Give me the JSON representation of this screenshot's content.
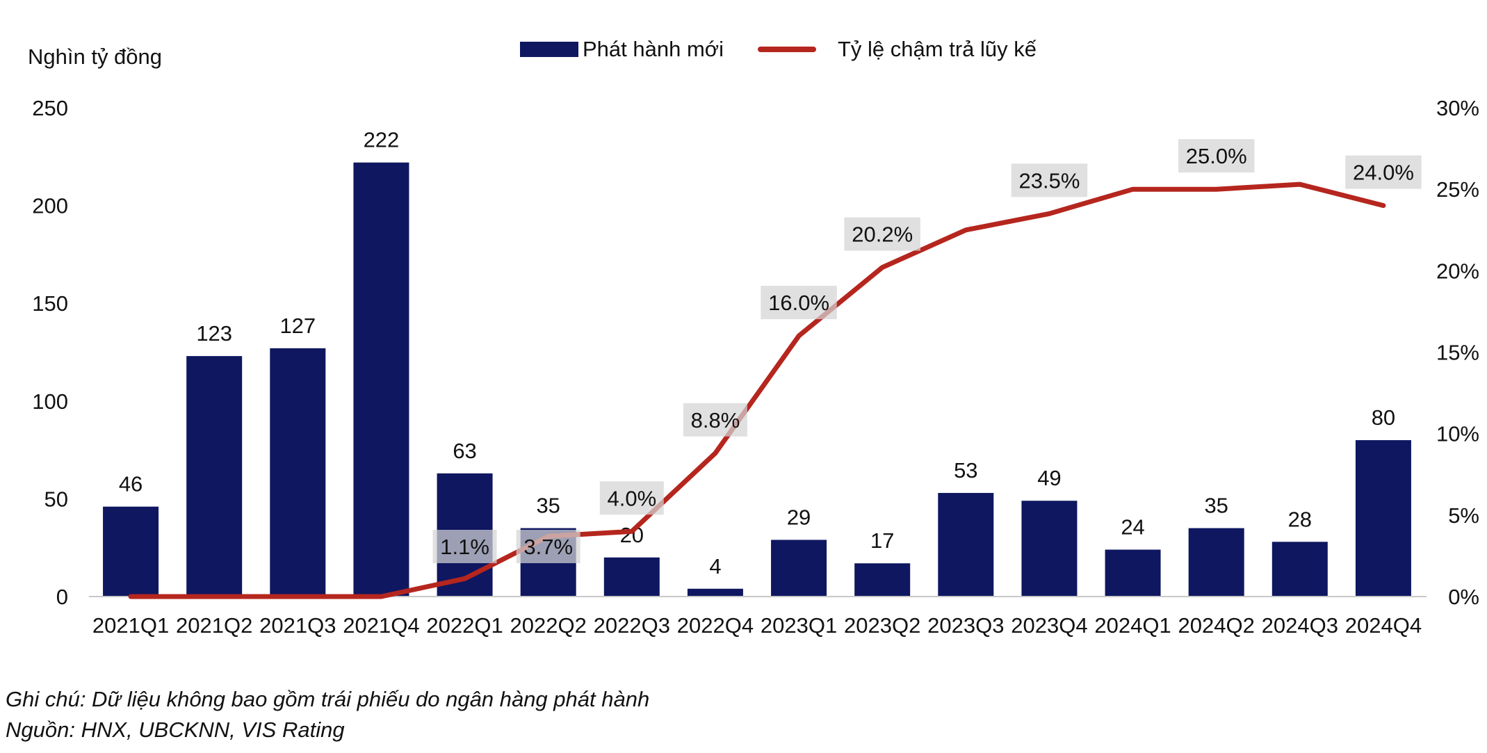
{
  "chart_data": {
    "type": "bar",
    "categories": [
      "2021Q1",
      "2021Q2",
      "2021Q3",
      "2021Q4",
      "2022Q1",
      "2022Q2",
      "2022Q3",
      "2022Q4",
      "2023Q1",
      "2023Q2",
      "2023Q3",
      "2023Q4",
      "2024Q1",
      "2024Q2",
      "2024Q3",
      "2024Q4"
    ],
    "ylabel": "Nghìn tỷ đồng",
    "ylim": [
      0,
      250
    ],
    "y_ticks": [
      "0",
      "50",
      "100",
      "150",
      "200",
      "250"
    ],
    "y2lim": [
      0,
      30
    ],
    "y2_ticks": [
      "0%",
      "5%",
      "10%",
      "15%",
      "20%",
      "25%",
      "30%"
    ],
    "legend_placement": "top-center",
    "grid": false,
    "series": [
      {
        "name": "Phát hành mới",
        "type": "bar",
        "axis": "left",
        "color": "#0f1760",
        "values": [
          46,
          123,
          127,
          222,
          63,
          35,
          20,
          4,
          29,
          17,
          53,
          49,
          24,
          35,
          28,
          80
        ],
        "labels": [
          "46",
          "123",
          "127",
          "222",
          "63",
          "35",
          "20",
          "4",
          "29",
          "17",
          "53",
          "49",
          "24",
          "35",
          "28",
          "80"
        ]
      },
      {
        "name": "Tỷ lệ chậm trả lũy kế",
        "type": "line",
        "axis": "right",
        "color": "#b5261e",
        "values": [
          0,
          0,
          0,
          0,
          1.1,
          3.7,
          4.0,
          8.8,
          16.0,
          20.2,
          22.5,
          23.5,
          25.0,
          25.0,
          25.3,
          24.0
        ],
        "point_labels": [
          {
            "index": 4,
            "text": "1.1%"
          },
          {
            "index": 5,
            "text": "3.7%"
          },
          {
            "index": 6,
            "text": "4.0%"
          },
          {
            "index": 7,
            "text": "8.8%"
          },
          {
            "index": 8,
            "text": "16.0%"
          },
          {
            "index": 9,
            "text": "20.2%"
          },
          {
            "index": 11,
            "text": "23.5%"
          },
          {
            "index": 13,
            "text": "25.0%"
          },
          {
            "index": 15,
            "text": "24.0%"
          }
        ]
      }
    ]
  },
  "notes": {
    "note": "Ghi chú: Dữ liệu không bao gồm trái phiếu do ngân hàng phát hành",
    "source": "Nguồn: HNX, UBCKNN, VIS Rating"
  }
}
